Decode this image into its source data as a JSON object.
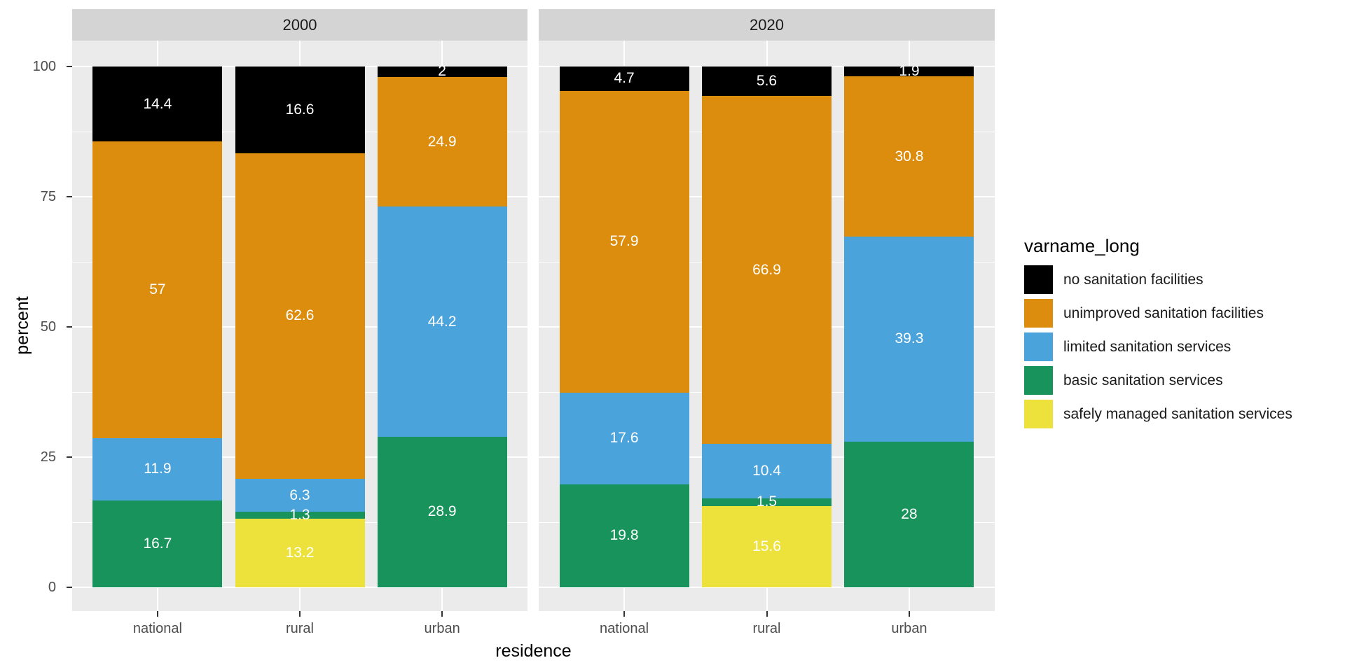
{
  "chart_data": {
    "type": "bar",
    "stacked": true,
    "facets": [
      "2000",
      "2020"
    ],
    "categories": [
      "national",
      "rural",
      "urban"
    ],
    "xlabel": "residence",
    "ylabel": "percent",
    "ylim": [
      0,
      100
    ],
    "yticks": [
      0,
      25,
      50,
      75,
      100
    ],
    "grid": true,
    "legend_title": "varname_long",
    "legend_position": "right",
    "stack_order_bottom_to_top": [
      "safely managed sanitation services",
      "basic sanitation services",
      "limited sanitation services",
      "unimproved sanitation facilities",
      "no sanitation facilities"
    ],
    "series": [
      {
        "name": "no sanitation facilities",
        "color": "#000000",
        "values": {
          "2000": [
            14.4,
            16.6,
            2
          ],
          "2020": [
            4.7,
            5.6,
            1.9
          ]
        }
      },
      {
        "name": "unimproved sanitation facilities",
        "color": "#DD8D0E",
        "values": {
          "2000": [
            57,
            62.6,
            24.9
          ],
          "2020": [
            57.9,
            66.9,
            30.8
          ]
        }
      },
      {
        "name": "limited sanitation services",
        "color": "#4BA3DC",
        "values": {
          "2000": [
            11.9,
            6.3,
            44.2
          ],
          "2020": [
            17.6,
            10.4,
            39.3
          ]
        }
      },
      {
        "name": "basic sanitation services",
        "color": "#18935C",
        "values": {
          "2000": [
            16.7,
            1.3,
            28.9
          ],
          "2020": [
            19.8,
            1.5,
            28
          ]
        }
      },
      {
        "name": "safely managed sanitation services",
        "color": "#EDE23C",
        "values": {
          "2000": [
            null,
            13.2,
            null
          ],
          "2020": [
            null,
            15.6,
            null
          ]
        }
      }
    ]
  },
  "theme": {
    "panel_background": "#EBEBEB",
    "strip_background": "#D4D4D4",
    "gridline_color": "#FFFFFF",
    "axis_text_color": "#4D4D4D",
    "bar_label_color": "#FFFFFF"
  }
}
